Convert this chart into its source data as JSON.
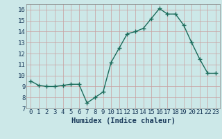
{
  "x": [
    0,
    1,
    2,
    3,
    4,
    5,
    6,
    7,
    8,
    9,
    10,
    11,
    12,
    13,
    14,
    15,
    16,
    17,
    18,
    19,
    20,
    21,
    22,
    23
  ],
  "y": [
    9.5,
    9.1,
    9.0,
    9.0,
    9.1,
    9.2,
    9.2,
    7.5,
    8.0,
    8.5,
    11.2,
    12.5,
    13.8,
    14.0,
    14.3,
    15.2,
    16.1,
    15.6,
    15.6,
    14.6,
    13.0,
    11.5,
    10.2,
    10.2
  ],
  "line_color": "#1a6b5a",
  "marker": "+",
  "markersize": 4,
  "linewidth": 1.0,
  "bg_color": "#cce8e8",
  "grid_color_major": "#c8a0a0",
  "grid_color_minor": "#c8a0a0",
  "xlabel": "Humidex (Indice chaleur)",
  "xlabel_fontsize": 7.5,
  "ylim": [
    7,
    16.5
  ],
  "xlim": [
    -0.5,
    23.5
  ],
  "yticks": [
    7,
    8,
    9,
    10,
    11,
    12,
    13,
    14,
    15,
    16
  ],
  "xticks": [
    0,
    1,
    2,
    3,
    4,
    5,
    6,
    7,
    8,
    9,
    10,
    11,
    12,
    13,
    14,
    15,
    16,
    17,
    18,
    19,
    20,
    21,
    22,
    23
  ],
  "tick_fontsize": 6.5,
  "tick_color": "#1a3a5a",
  "axis_color": "#888888"
}
